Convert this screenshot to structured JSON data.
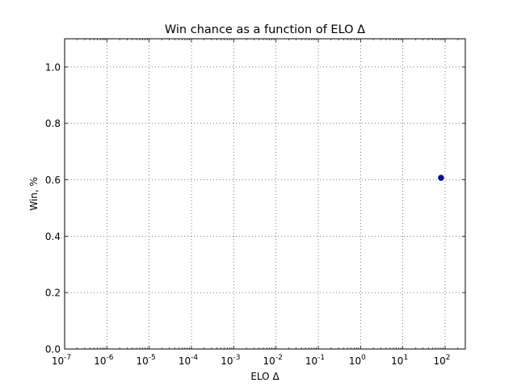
{
  "chart_data": {
    "type": "scatter",
    "title": "Win chance as a function of ELO Δ",
    "xlabel": "ELO Δ",
    "ylabel": "Win, %",
    "xscale": "log",
    "xlim": [
      1e-07,
      300
    ],
    "ylim": [
      0.0,
      1.1
    ],
    "grid": true,
    "x_ticks": [
      {
        "value": 1e-07,
        "base": "10",
        "exp": "-7"
      },
      {
        "value": 1e-06,
        "base": "10",
        "exp": "-6"
      },
      {
        "value": 1e-05,
        "base": "10",
        "exp": "-5"
      },
      {
        "value": 0.0001,
        "base": "10",
        "exp": "-4"
      },
      {
        "value": 0.001,
        "base": "10",
        "exp": "-3"
      },
      {
        "value": 0.01,
        "base": "10",
        "exp": "-2"
      },
      {
        "value": 0.1,
        "base": "10",
        "exp": "-1"
      },
      {
        "value": 1,
        "base": "10",
        "exp": "0"
      },
      {
        "value": 10,
        "base": "10",
        "exp": "1"
      },
      {
        "value": 100,
        "base": "10",
        "exp": "2"
      }
    ],
    "y_ticks": [
      {
        "value": 0.0,
        "label": "0.0"
      },
      {
        "value": 0.2,
        "label": "0.2"
      },
      {
        "value": 0.4,
        "label": "0.4"
      },
      {
        "value": 0.6,
        "label": "0.6"
      },
      {
        "value": 0.8,
        "label": "0.8"
      },
      {
        "value": 1.0,
        "label": "1.0"
      }
    ],
    "series": [
      {
        "color": "#0000bf",
        "points": [
          {
            "x": 80,
            "y": 0.607
          }
        ]
      }
    ]
  }
}
